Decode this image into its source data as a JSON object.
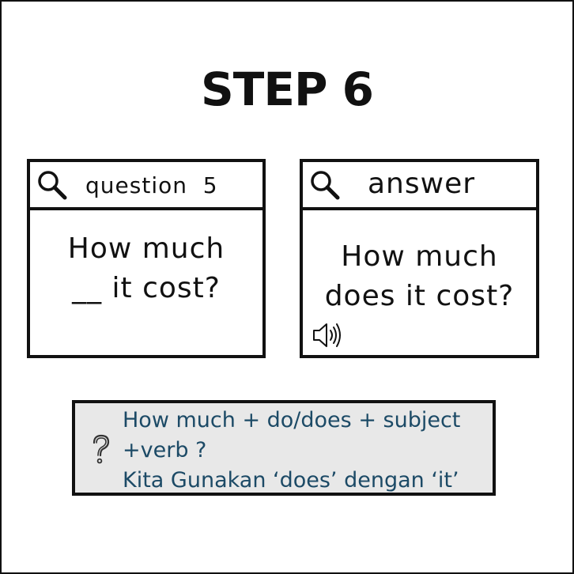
{
  "title": "STEP 6",
  "question_card": {
    "header": "question  5",
    "body_line1": "How much",
    "body_line2": "__ it cost?",
    "icon": "search-icon"
  },
  "answer_card": {
    "header": "answer",
    "body_line1": "How much",
    "body_line2": "does it cost?",
    "icon": "search-icon",
    "audio_icon": "speaker-icon"
  },
  "tip": {
    "icon": "question-icon",
    "line1": "How much + do/does + subject",
    "line2": "+verb ?",
    "line3": "Kita Gunakan ‘does’ dengan ‘it’",
    "text_color": "#1c4a66",
    "background": "#e8e8e8"
  }
}
